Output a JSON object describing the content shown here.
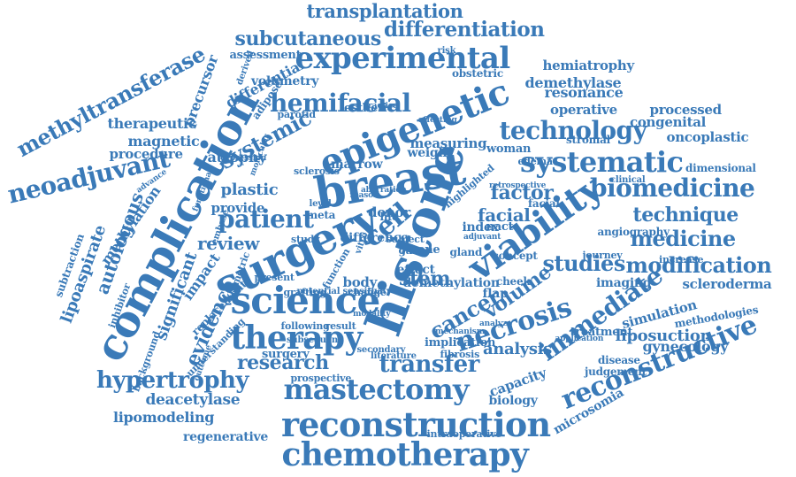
{
  "color": "#3a7ab8",
  "words": [
    "transplantation",
    "differentiation",
    "subcutaneous",
    "experimental",
    "methyltransferase",
    "complication",
    "hemiatrophy",
    "demethylase",
    "epigenetic",
    "breast",
    "histone",
    "surgery",
    "science",
    "therapy",
    "reconstruction",
    "chemotherapy",
    "mastectomy",
    "reconstructive",
    "viability",
    "cell",
    "systematic",
    "biomedicine",
    "technology",
    "hemifacial",
    "neoadjuvant",
    "patient",
    "review",
    "evidence",
    "research",
    "transfer",
    "hypertrophy",
    "cancer",
    "necrosis",
    "immediate",
    "modification",
    "scleroderma",
    "studies",
    "medicine",
    "technique",
    "factor",
    "facial",
    "systemic",
    "resonance",
    "operative",
    "processed",
    "congenital",
    "oncoplastic",
    "dimensional",
    "liposuction",
    "gynecology",
    "simulation",
    "methodologies",
    "volume",
    "analysis",
    "stem",
    "body",
    "index",
    "deacetylase",
    "lipomodeling",
    "regenerative",
    "microsomia",
    "intraoperative",
    "biology",
    "capacity",
    "disease",
    "judgement",
    "imaging",
    "autologous",
    "methylation",
    "lipoaspirate",
    "subtraction",
    "significant",
    "impact",
    "plastic",
    "atrophy",
    "provide",
    "magnetic",
    "procedure",
    "therapeutic",
    "precursor",
    "differential",
    "adipose",
    "derived",
    "assessment",
    "volumetry",
    "obstetric",
    "esthetic",
    "parotid",
    "measuring",
    "weight",
    "woman",
    "stromal",
    "marrow",
    "sclerosis",
    "difference",
    "donor",
    "nact",
    "facial",
    "clinical",
    "angiography",
    "increase",
    "demethylation",
    "flap",
    "cheek",
    "gland",
    "effect",
    "risk",
    "implication",
    "fibrosis",
    "subject",
    "surgery",
    "prospective",
    "background",
    "replacement",
    "inhibitor",
    "understanding",
    "volumetric",
    "journey",
    "highlighted",
    "edema",
    "concept",
    "bone",
    "gain",
    "life",
    "meta",
    "study",
    "present",
    "grafting",
    "change",
    "result",
    "following",
    "subsequent",
    "literature",
    "secondary",
    "sensitivity",
    "potential",
    "treatment",
    "function",
    "vitro",
    "level",
    "embase",
    "aberration",
    "reason",
    "practice",
    "affecting",
    "molecular",
    "expression",
    "advance",
    "functional",
    "retrospective",
    "modality",
    "outcome",
    "analyze",
    "mechanism",
    "application",
    "adjuvant",
    "method",
    "sample"
  ]
}
